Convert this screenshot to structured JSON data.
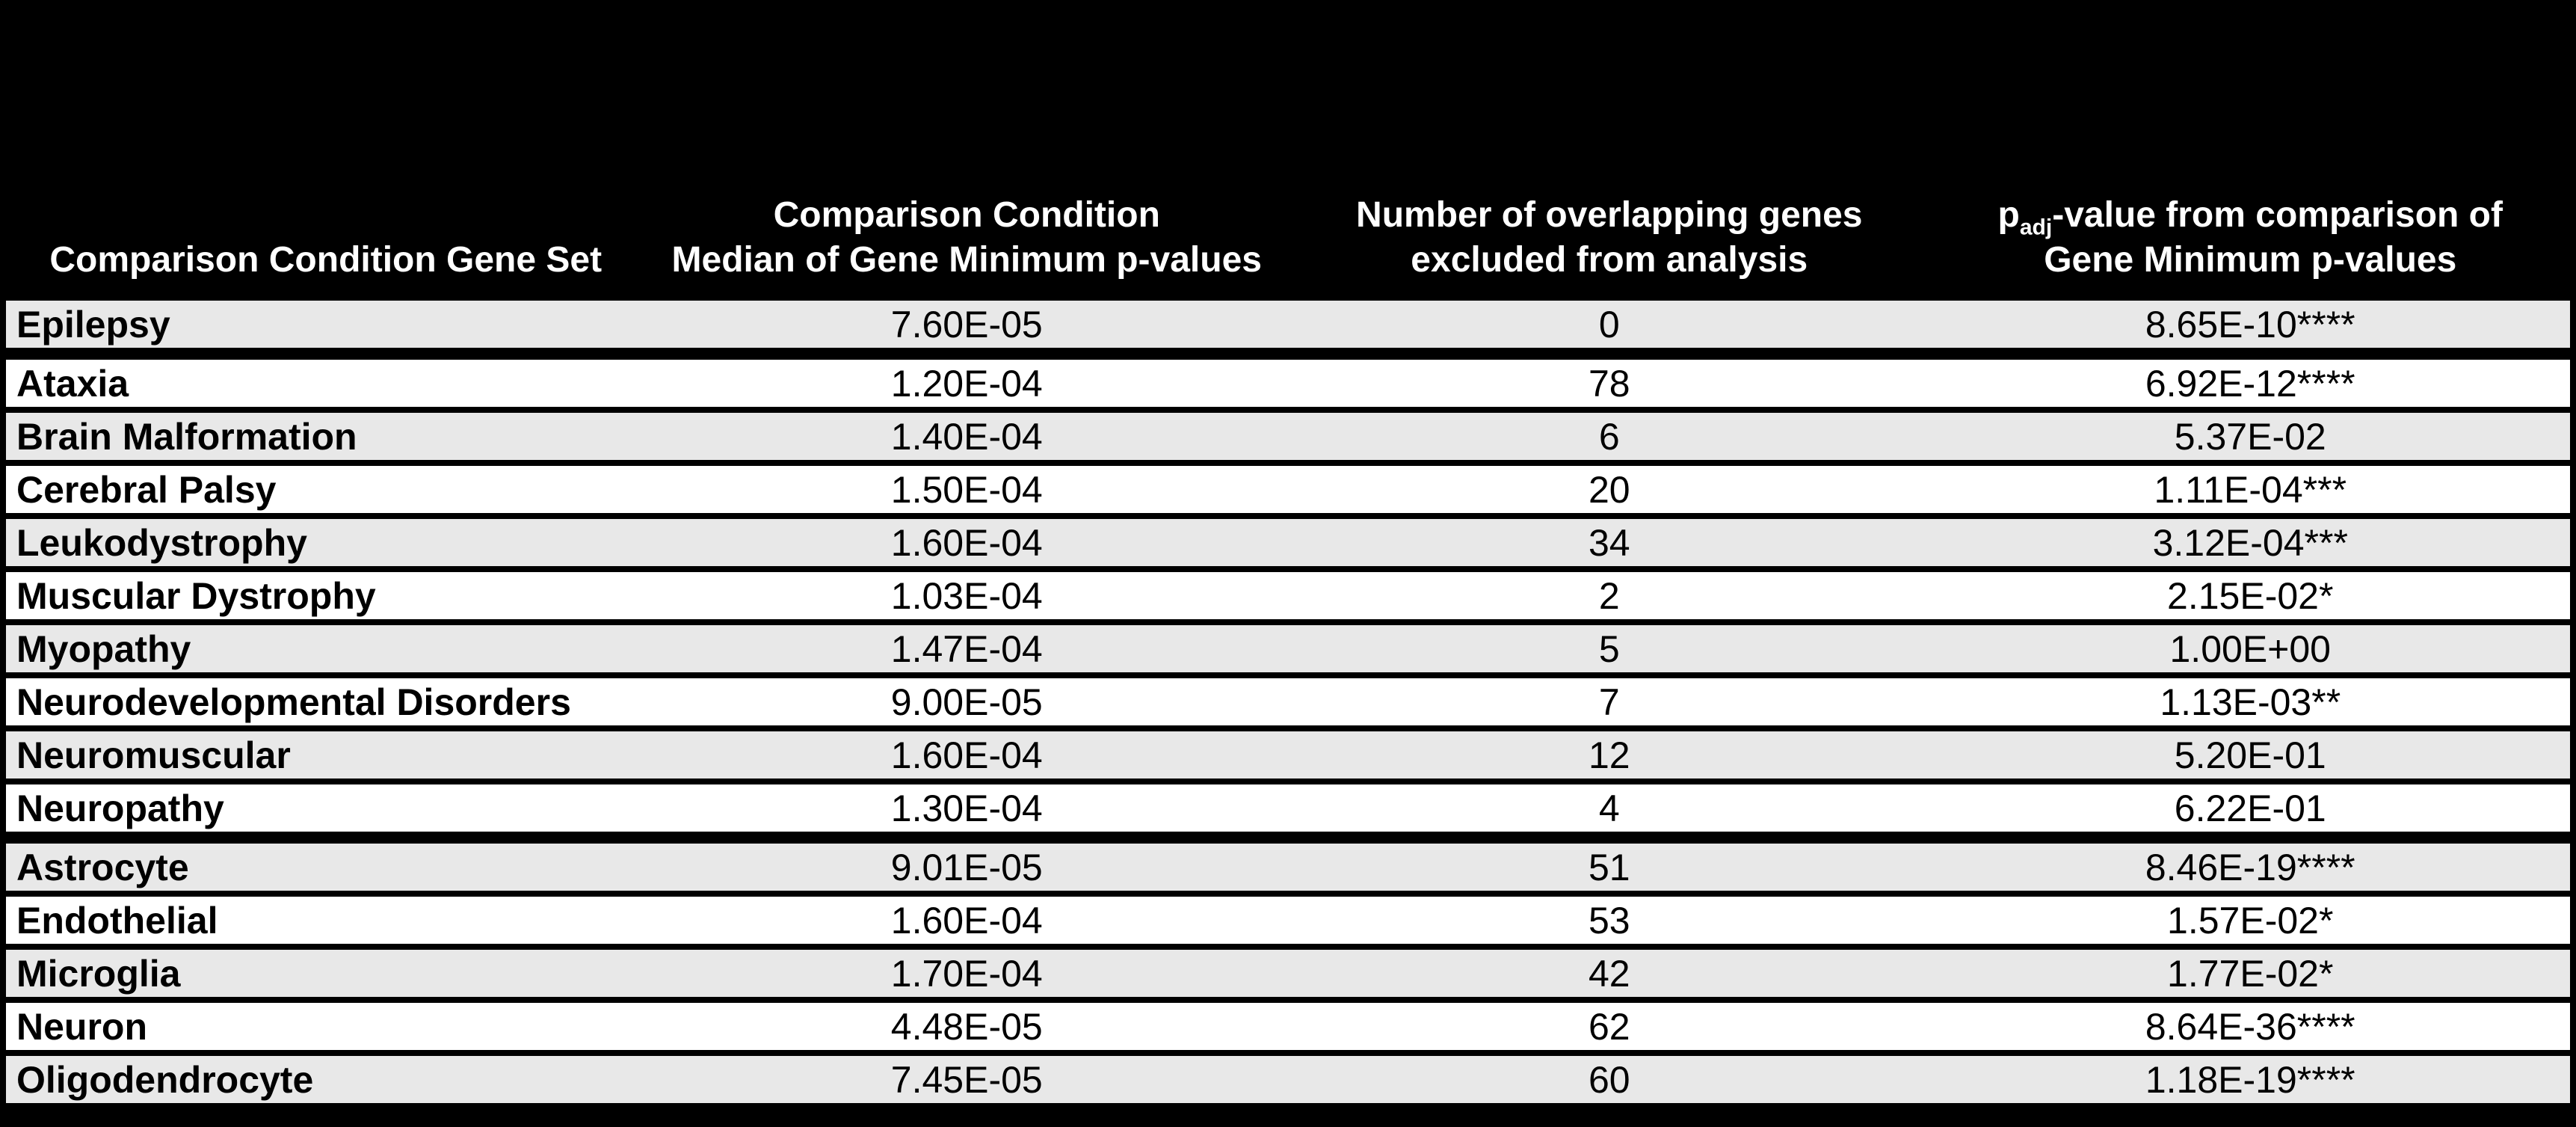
{
  "style": {
    "background": "#000000",
    "row_stripe_gray": "#e8e8e8",
    "row_stripe_white": "#ffffff",
    "header_text_color": "#ffffff",
    "body_text_color": "#000000",
    "grid_color": "#000000"
  },
  "header": {
    "col1": {
      "line1": "Comparison Condition Gene Set"
    },
    "col2": {
      "line1": "Comparison Condition",
      "line2": "Median of Gene Minimum p-values"
    },
    "col3": {
      "line1": "Number of overlapping genes",
      "line2": "excluded from analysis"
    },
    "col4": {
      "prefix": "p",
      "subscript": "adj",
      "line1_rest": "-value from comparison of",
      "line2": "Gene Minimum p-values"
    }
  },
  "rows": [
    {
      "gene_set": "Epilepsy",
      "median_p_value": "7.60E-05",
      "overlapping_genes_excluded": "0",
      "p_adj_value": "8.65E-10****"
    },
    {
      "gene_set": "Ataxia",
      "median_p_value": "1.20E-04",
      "overlapping_genes_excluded": "78",
      "p_adj_value": "6.92E-12****"
    },
    {
      "gene_set": "Brain Malformation",
      "median_p_value": "1.40E-04",
      "overlapping_genes_excluded": "6",
      "p_adj_value": "5.37E-02"
    },
    {
      "gene_set": "Cerebral Palsy",
      "median_p_value": "1.50E-04",
      "overlapping_genes_excluded": "20",
      "p_adj_value": "1.11E-04***"
    },
    {
      "gene_set": "Leukodystrophy",
      "median_p_value": "1.60E-04",
      "overlapping_genes_excluded": "34",
      "p_adj_value": "3.12E-04***"
    },
    {
      "gene_set": "Muscular Dystrophy",
      "median_p_value": "1.03E-04",
      "overlapping_genes_excluded": "2",
      "p_adj_value": "2.15E-02*"
    },
    {
      "gene_set": "Myopathy",
      "median_p_value": "1.47E-04",
      "overlapping_genes_excluded": "5",
      "p_adj_value": "1.00E+00"
    },
    {
      "gene_set": "Neurodevelopmental Disorders",
      "median_p_value": "9.00E-05",
      "overlapping_genes_excluded": "7",
      "p_adj_value": "1.13E-03**"
    },
    {
      "gene_set": "Neuromuscular",
      "median_p_value": "1.60E-04",
      "overlapping_genes_excluded": "12",
      "p_adj_value": "5.20E-01"
    },
    {
      "gene_set": "Neuropathy",
      "median_p_value": "1.30E-04",
      "overlapping_genes_excluded": "4",
      "p_adj_value": "6.22E-01"
    },
    {
      "gene_set": "Astrocyte",
      "median_p_value": "9.01E-05",
      "overlapping_genes_excluded": "51",
      "p_adj_value": "8.46E-19****"
    },
    {
      "gene_set": "Endothelial",
      "median_p_value": "1.60E-04",
      "overlapping_genes_excluded": "53",
      "p_adj_value": "1.57E-02*"
    },
    {
      "gene_set": "Microglia",
      "median_p_value": "1.70E-04",
      "overlapping_genes_excluded": "42",
      "p_adj_value": "1.77E-02*"
    },
    {
      "gene_set": "Neuron",
      "median_p_value": "4.48E-05",
      "overlapping_genes_excluded": "62",
      "p_adj_value": "8.64E-36****"
    },
    {
      "gene_set": "Oligodendrocyte",
      "median_p_value": "7.45E-05",
      "overlapping_genes_excluded": "60",
      "p_adj_value": "1.18E-19****"
    }
  ]
}
